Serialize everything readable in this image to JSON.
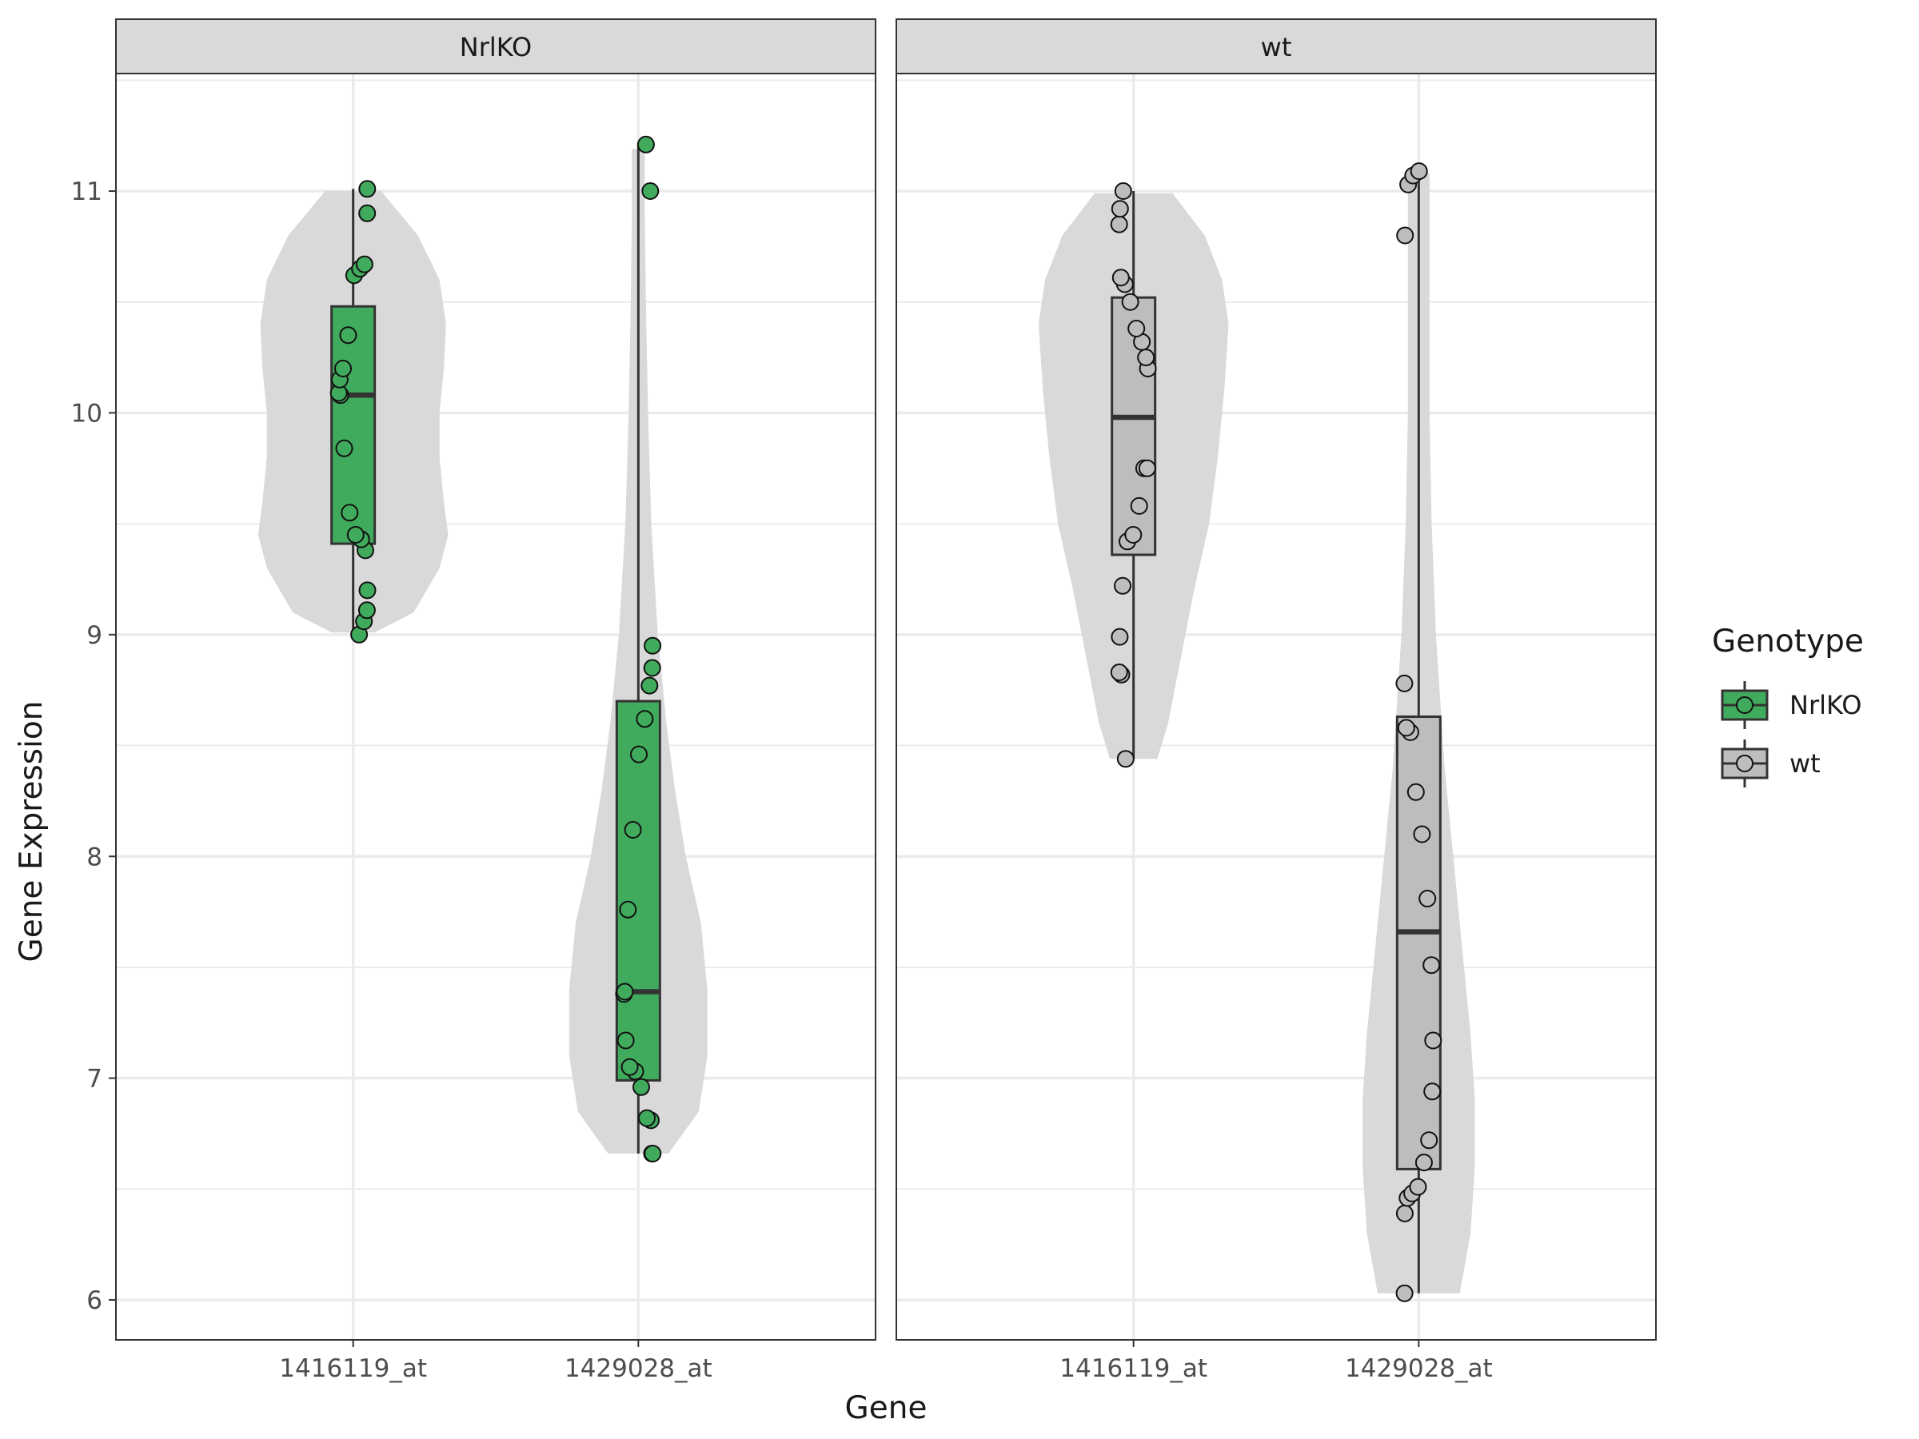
{
  "chart_data": {
    "type": "box",
    "subtype": "violin + boxplot + jittered points, faceted",
    "facets": [
      "NrlKO",
      "wt"
    ],
    "categories": [
      "1416119_at",
      "1429028_at"
    ],
    "xlabel": "Gene",
    "ylabel": "Gene Expression",
    "ylim": [
      5.82,
      11.53
    ],
    "y_ticks": [
      6,
      7,
      8,
      9,
      10,
      11
    ],
    "y_tick_labels": [
      "6",
      "7",
      "8",
      "9",
      "10",
      "11"
    ],
    "grid": true,
    "legend": {
      "title": "Genotype",
      "position": "right",
      "entries": [
        "NrlKO",
        "wt"
      ]
    },
    "colors": {
      "NrlKO": "#41ab5d",
      "wt": "#bdbdbd",
      "violin": "#d9d9d9",
      "strip": "#d9d9d9"
    },
    "series": [
      {
        "facet": "NrlKO",
        "gene": "1416119_at",
        "box": {
          "lower_whisker": 9.0,
          "q1": 9.41,
          "median": 10.08,
          "q3": 10.48,
          "upper_whisker": 11.01
        },
        "violin": {
          "y": [
            9.01,
            9.1,
            9.3,
            9.45,
            9.6,
            9.8,
            10.0,
            10.2,
            10.4,
            10.6,
            10.8,
            11.0
          ],
          "half_width": [
            0.1,
            0.28,
            0.4,
            0.44,
            0.42,
            0.4,
            0.4,
            0.42,
            0.43,
            0.4,
            0.3,
            0.13
          ]
        },
        "points": [
          9.0,
          9.06,
          9.11,
          9.2,
          9.38,
          9.43,
          9.45,
          9.55,
          9.84,
          10.08,
          10.09,
          10.15,
          10.2,
          10.35,
          10.62,
          10.65,
          10.67,
          10.9,
          11.01
        ]
      },
      {
        "facet": "NrlKO",
        "gene": "1429028_at",
        "box": {
          "lower_whisker": 6.66,
          "q1": 6.99,
          "median": 7.39,
          "q3": 8.7,
          "upper_whisker": 11.21
        },
        "violin": {
          "y": [
            6.66,
            6.85,
            7.1,
            7.4,
            7.7,
            8.0,
            8.3,
            8.6,
            9.0,
            9.5,
            10.0,
            10.5,
            10.9,
            11.19
          ],
          "half_width": [
            0.14,
            0.28,
            0.32,
            0.32,
            0.29,
            0.22,
            0.17,
            0.13,
            0.09,
            0.06,
            0.045,
            0.035,
            0.03,
            0.03
          ]
        },
        "points": [
          6.66,
          6.66,
          6.81,
          6.82,
          6.96,
          7.03,
          7.05,
          7.17,
          7.38,
          7.39,
          7.76,
          8.12,
          8.46,
          8.62,
          8.77,
          8.85,
          8.95,
          11.0,
          11.21
        ]
      },
      {
        "facet": "wt",
        "gene": "1416119_at",
        "box": {
          "lower_whisker": 8.44,
          "q1": 9.36,
          "median": 9.98,
          "q3": 10.52,
          "upper_whisker": 11.0
        },
        "violin": {
          "y": [
            8.44,
            8.6,
            8.9,
            9.2,
            9.5,
            9.8,
            10.1,
            10.4,
            10.6,
            10.8,
            10.99
          ],
          "half_width": [
            0.11,
            0.16,
            0.22,
            0.28,
            0.35,
            0.39,
            0.42,
            0.44,
            0.41,
            0.33,
            0.18
          ]
        },
        "points": [
          8.44,
          8.82,
          8.83,
          8.99,
          9.22,
          9.42,
          9.45,
          9.58,
          9.75,
          9.75,
          10.2,
          10.25,
          10.32,
          10.38,
          10.5,
          10.58,
          10.61,
          10.85,
          10.92,
          11.0
        ]
      },
      {
        "facet": "wt",
        "gene": "1429028_at",
        "box": {
          "lower_whisker": 6.03,
          "q1": 6.59,
          "median": 7.66,
          "q3": 8.63,
          "upper_whisker": 11.09
        },
        "violin": {
          "y": [
            6.03,
            6.3,
            6.6,
            6.9,
            7.2,
            7.5,
            7.8,
            8.1,
            8.4,
            8.7,
            9.0,
            9.5,
            10.0,
            10.5,
            11.08
          ],
          "half_width": [
            0.19,
            0.24,
            0.26,
            0.26,
            0.24,
            0.21,
            0.18,
            0.15,
            0.12,
            0.1,
            0.08,
            0.06,
            0.05,
            0.05,
            0.05
          ]
        },
        "points": [
          6.03,
          6.39,
          6.46,
          6.48,
          6.51,
          6.62,
          6.72,
          6.94,
          7.17,
          7.51,
          7.81,
          8.1,
          8.29,
          8.56,
          8.58,
          8.78,
          10.8,
          11.03,
          11.07,
          11.09
        ]
      }
    ]
  }
}
